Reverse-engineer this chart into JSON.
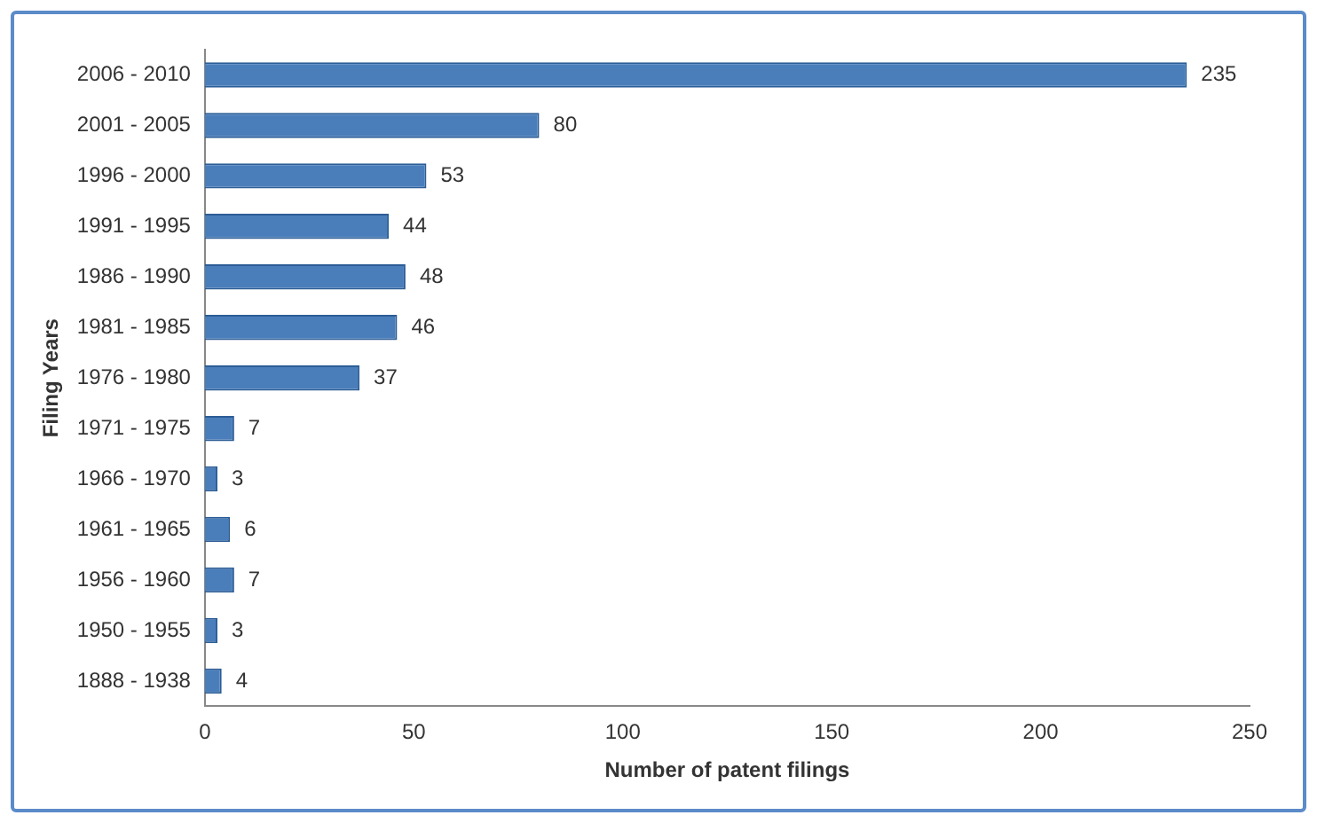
{
  "chart_data": {
    "type": "bar",
    "orientation": "horizontal",
    "xlabel": "Number of patent filings",
    "ylabel": "Filing Years",
    "categories": [
      "2006 - 2010",
      "2001 - 2005",
      "1996 - 2000",
      "1991 - 1995",
      "1986 - 1990",
      "1981 - 1985",
      "1976 - 1980",
      "1971 - 1975",
      "1966 - 1970",
      "1961 - 1965",
      "1956 - 1960",
      "1950 - 1955",
      "1888 - 1938"
    ],
    "values": [
      235,
      80,
      53,
      44,
      48,
      46,
      37,
      7,
      3,
      6,
      7,
      3,
      4
    ],
    "color": "#4a7ebb",
    "xlim": [
      0,
      250
    ],
    "xticks": [
      0,
      50,
      100,
      150,
      200,
      250
    ],
    "grid": false,
    "legend": false,
    "data_labels": true
  }
}
